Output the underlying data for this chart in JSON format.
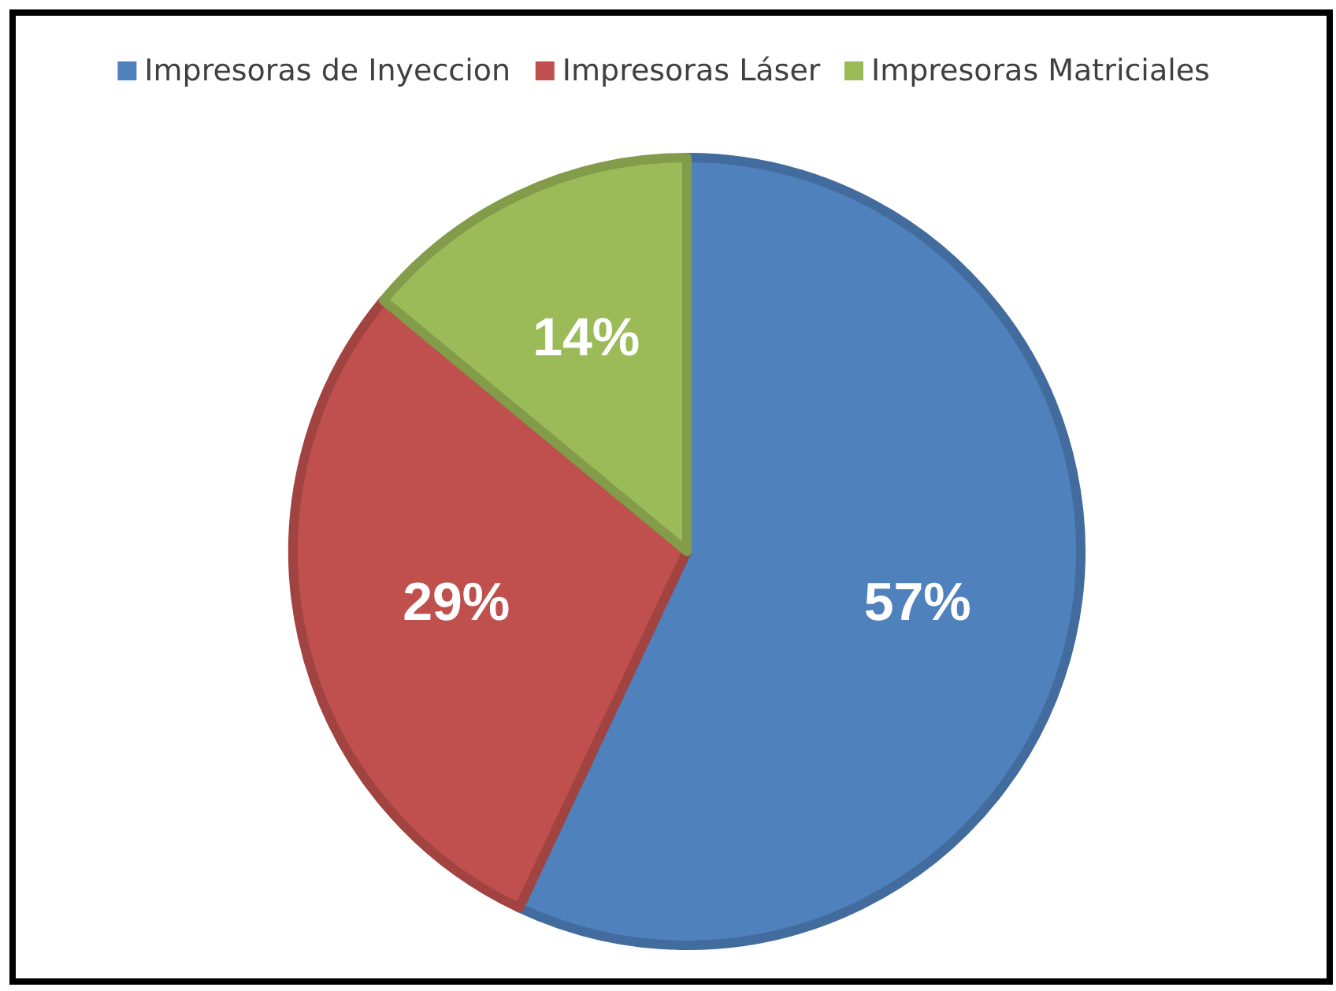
{
  "chart_data": {
    "type": "pie",
    "categories": [
      "Impresoras de Inyeccion",
      "Impresoras Láser",
      "Impresoras Matriciales"
    ],
    "values": [
      57,
      29,
      14
    ],
    "colors": [
      "#4f81bd",
      "#c0504d",
      "#9bbb59"
    ],
    "value_labels": [
      "57%",
      "29%",
      "14%"
    ],
    "legend": "top"
  }
}
